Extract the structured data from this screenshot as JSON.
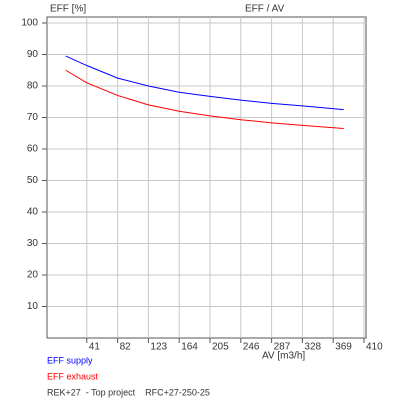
{
  "chart_data": {
    "type": "line",
    "y_label": "EFF [%]",
    "title": "EFF / AV",
    "x_label": "AV [m3/h]",
    "x": [
      13,
      41,
      82,
      123,
      164,
      205,
      246,
      287,
      328,
      383
    ],
    "series": [
      {
        "name": "EFF supply",
        "color": "#0000ff",
        "values": [
          89.5,
          86.5,
          82.5,
          80,
          78,
          76.7,
          75.5,
          74.5,
          73.7,
          72.5
        ]
      },
      {
        "name": "EFF exhaust",
        "color": "#ff0000",
        "values": [
          85,
          81,
          77,
          74,
          72,
          70.5,
          69.3,
          68.3,
          67.5,
          66.5
        ]
      }
    ],
    "xlim": [
      0,
      410
    ],
    "xticks": [
      41,
      82,
      123,
      164,
      205,
      246,
      287,
      328,
      369,
      410
    ],
    "ylim": [
      0,
      100
    ],
    "yticks": [
      10,
      20,
      30,
      40,
      50,
      60,
      70,
      80,
      90,
      100
    ],
    "grid": true,
    "footer": "REK+27  - Top project    RFC+27-250-25"
  }
}
